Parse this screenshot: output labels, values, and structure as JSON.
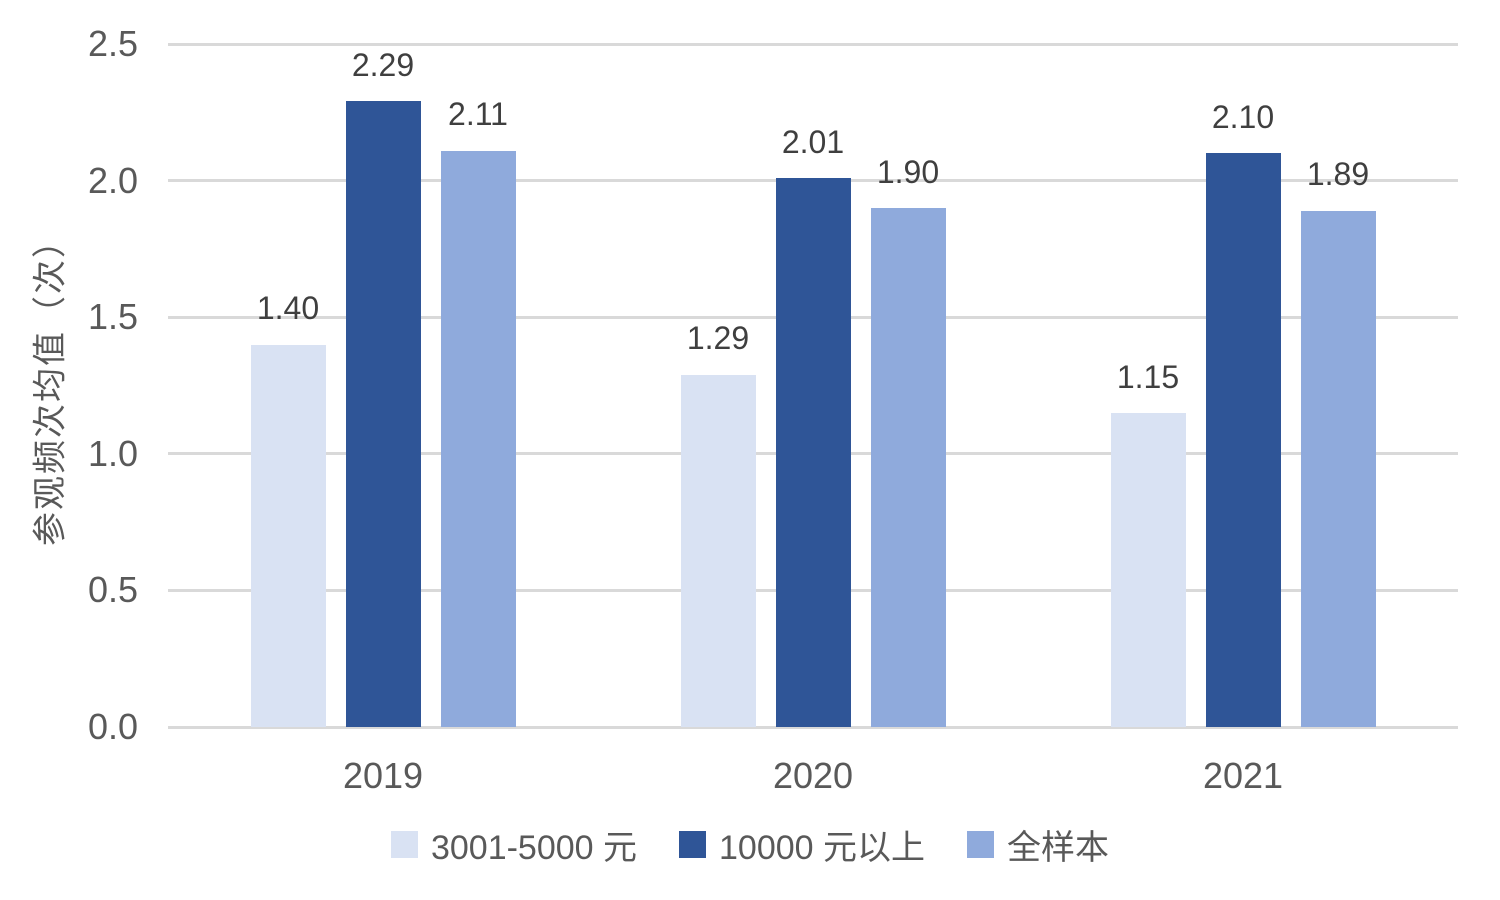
{
  "chart_data": {
    "type": "bar",
    "title": "",
    "categories": [
      "2019",
      "2020",
      "2021"
    ],
    "series": [
      {
        "name": "3001-5000 元",
        "color": "#d9e2f3",
        "values": [
          1.4,
          1.29,
          1.15
        ]
      },
      {
        "name": "10000 元以上",
        "color": "#2f5597",
        "values": [
          2.29,
          2.01,
          2.1
        ]
      },
      {
        "name": "全样本",
        "color": "#8faadc",
        "values": [
          2.11,
          1.9,
          1.89
        ]
      }
    ],
    "data_labels": [
      [
        "1.40",
        "1.29",
        "1.15"
      ],
      [
        "2.29",
        "2.01",
        "2.10"
      ],
      [
        "2.11",
        "1.90",
        "1.89"
      ]
    ],
    "xlabel": "",
    "ylabel": "参观频次均值（次）",
    "ylim": [
      0,
      2.5
    ],
    "yticks": [
      "0.0",
      "0.5",
      "1.0",
      "1.5",
      "2.0",
      "2.5"
    ],
    "grid": true,
    "legend_position": "bottom"
  },
  "style": {
    "gridline_color": "#d9d9d9",
    "tick_text_color": "#595959",
    "data_label_color": "#3f3f3f",
    "background": "#ffffff"
  }
}
